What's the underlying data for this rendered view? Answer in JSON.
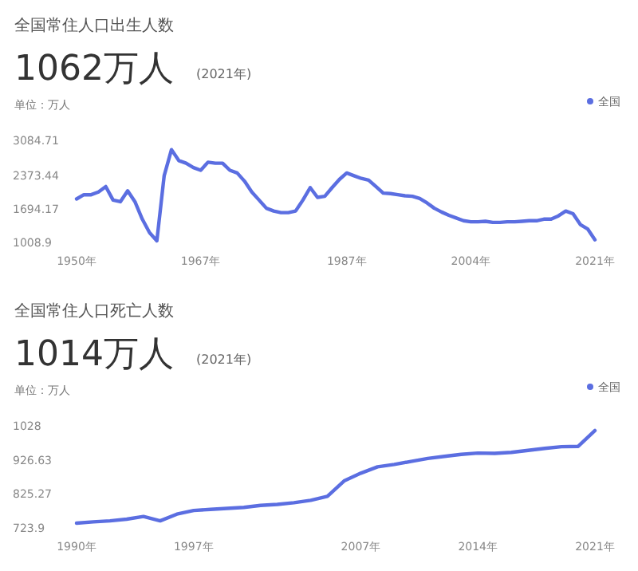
{
  "chart_data": [
    {
      "type": "line",
      "title": "全国常住人口出生人数",
      "subtitle": "1062万人",
      "annotations": [
        "(2021年)"
      ],
      "ylabel": "单位：万人",
      "legend": "top right",
      "marker": "none",
      "x": [
        1950,
        1951,
        1952,
        1953,
        1954,
        1955,
        1956,
        1957,
        1958,
        1959,
        1960,
        1961,
        1962,
        1963,
        1964,
        1965,
        1966,
        1967,
        1968,
        1969,
        1970,
        1971,
        1972,
        1973,
        1974,
        1975,
        1976,
        1977,
        1978,
        1979,
        1980,
        1981,
        1982,
        1983,
        1984,
        1985,
        1986,
        1987,
        1988,
        1989,
        1990,
        1991,
        1992,
        1993,
        1994,
        1995,
        1996,
        1997,
        1998,
        1999,
        2000,
        2001,
        2002,
        2003,
        2004,
        2005,
        2006,
        2007,
        2008,
        2009,
        2010,
        2011,
        2012,
        2013,
        2014,
        2015,
        2016,
        2017,
        2018,
        2019,
        2020,
        2021
      ],
      "series": [
        {
          "name": "全国",
          "color": "#5b6ee1",
          "values": [
            1893,
            1979,
            1979,
            2035,
            2145,
            1870,
            1837,
            2058,
            1837,
            1482,
            1208,
            1042,
            2366,
            2896,
            2674,
            2620,
            2531,
            2476,
            2641,
            2620,
            2620,
            2476,
            2422,
            2256,
            2035,
            1870,
            1704,
            1648,
            1615,
            1615,
            1648,
            1870,
            2124,
            1925,
            1947,
            2124,
            2290,
            2422,
            2366,
            2311,
            2277,
            2145,
            2012,
            2002,
            1979,
            1958,
            1947,
            1902,
            1813,
            1704,
            1627,
            1561,
            1505,
            1450,
            1428,
            1428,
            1439,
            1417,
            1417,
            1428,
            1428,
            1439,
            1450,
            1450,
            1482,
            1482,
            1549,
            1648,
            1593,
            1373,
            1284,
            1062
          ]
        }
      ],
      "xlim": [
        1950,
        2021
      ],
      "xticks": [
        {
          "value": 1950,
          "label": "1950年"
        },
        {
          "value": 1967,
          "label": "1967年"
        },
        {
          "value": 1987,
          "label": "1987年"
        },
        {
          "value": 2004,
          "label": "2004年"
        },
        {
          "value": 2021,
          "label": "2021年"
        }
      ],
      "ylim": [
        1008.9,
        3084.71
      ],
      "yticks": [
        1008.9,
        1694.17,
        2373.44,
        3084.71
      ]
    },
    {
      "type": "line",
      "title": "全国常住人口死亡人数",
      "subtitle": "1014万人",
      "annotations": [
        "(2021年)"
      ],
      "ylabel": "单位：万人",
      "legend": "top right",
      "marker": "none",
      "x": [
        1990,
        1991,
        1992,
        1993,
        1994,
        1995,
        1996,
        1997,
        1998,
        1999,
        2000,
        2001,
        2002,
        2003,
        2004,
        2005,
        2006,
        2007,
        2008,
        2009,
        2010,
        2011,
        2012,
        2013,
        2014,
        2015,
        2016,
        2017,
        2018,
        2019,
        2020,
        2021
      ],
      "series": [
        {
          "name": "全国",
          "color": "#5b6ee1",
          "values": [
            738,
            742,
            745,
            750,
            758,
            745,
            765,
            776,
            779,
            782,
            785,
            791,
            794,
            799,
            806,
            818,
            864,
            887,
            906,
            913,
            922,
            931,
            937,
            943,
            947,
            946,
            949,
            955,
            961,
            966,
            967,
            1014
          ]
        }
      ],
      "xlim": [
        1990,
        2021
      ],
      "xticks": [
        {
          "value": 1990,
          "label": "1990年"
        },
        {
          "value": 1997,
          "label": "1997年"
        },
        {
          "value": 2007,
          "label": "2007年"
        },
        {
          "value": 2014,
          "label": "2014年"
        },
        {
          "value": 2021,
          "label": "2021年"
        }
      ],
      "ylim": [
        723.9,
        1028
      ],
      "yticks": [
        723.9,
        825.27,
        926.63,
        1028
      ]
    }
  ]
}
